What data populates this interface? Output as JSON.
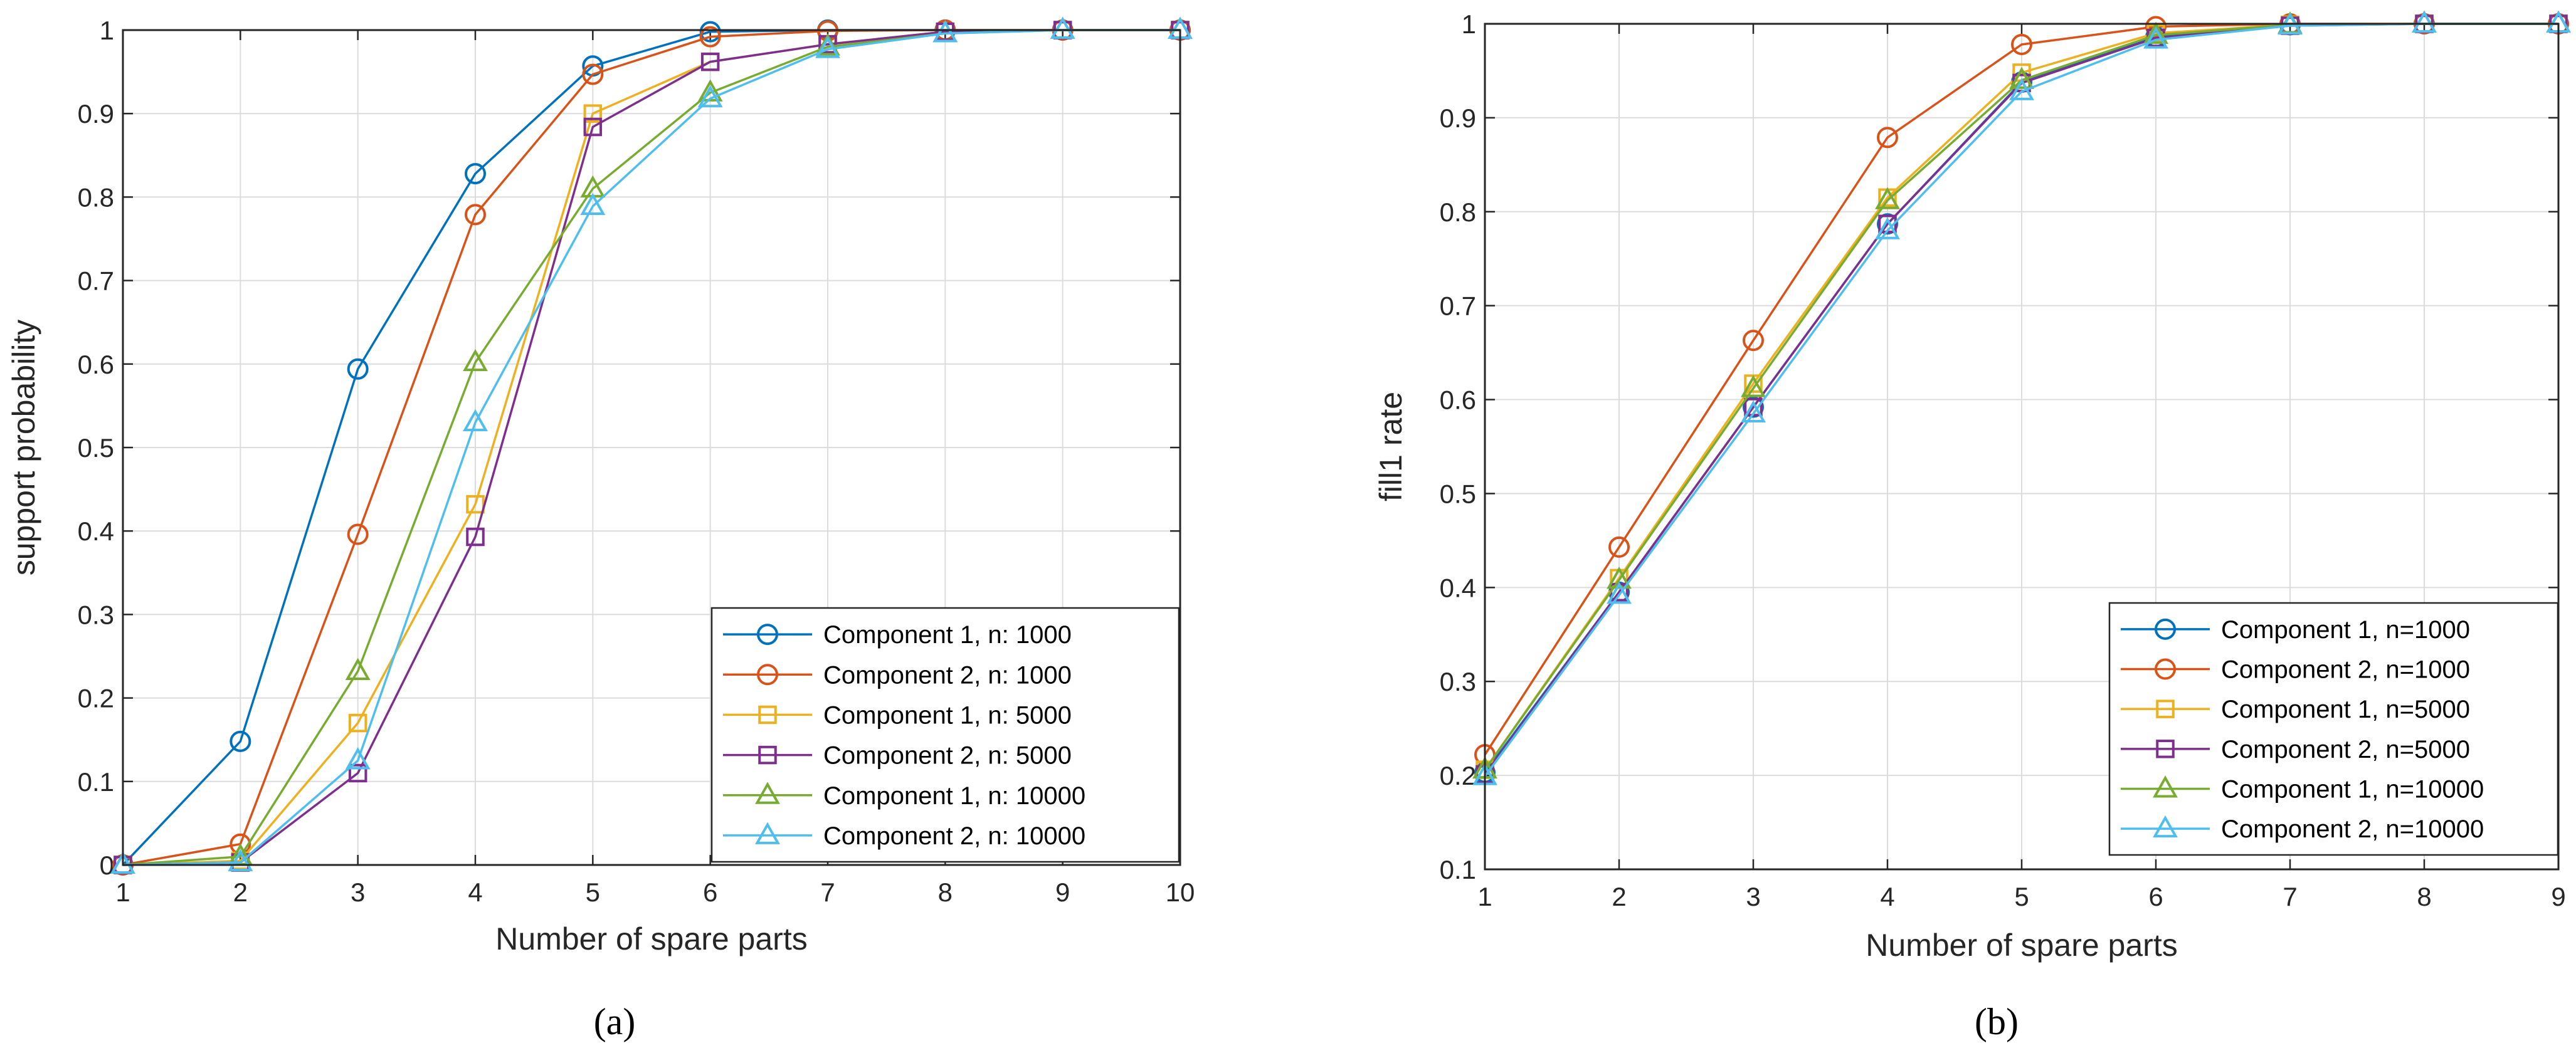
{
  "chart_data": [
    {
      "type": "line",
      "caption": "(a)",
      "xlabel": "Number of spare parts",
      "ylabel": "support probability",
      "xlim": [
        1,
        10
      ],
      "ylim": [
        0,
        1
      ],
      "x": [
        1,
        2,
        3,
        4,
        5,
        6,
        7,
        8,
        9,
        10
      ],
      "xticks": [
        "1",
        "2",
        "3",
        "4",
        "5",
        "6",
        "7",
        "8",
        "9",
        "10"
      ],
      "yticks": [
        "0",
        "0.1",
        "0.2",
        "0.3",
        "0.4",
        "0.5",
        "0.6",
        "0.7",
        "0.8",
        "0.9",
        "1"
      ],
      "grid": true,
      "legend_position": "bottom-right",
      "series": [
        {
          "name": "Component 1, n: 1000",
          "marker": "circle",
          "color": "#0072BD",
          "values": [
            0,
            0.148,
            0.594,
            0.828,
            0.957,
            0.998,
            1.0,
            1.0,
            1.0,
            1.0
          ]
        },
        {
          "name": "Component 2, n: 1000",
          "marker": "circle",
          "color": "#D95319",
          "values": [
            0,
            0.025,
            0.396,
            0.779,
            0.947,
            0.992,
            0.999,
            1.0,
            1.0,
            1.0
          ]
        },
        {
          "name": "Component 1, n: 5000",
          "marker": "square",
          "color": "#EDB120",
          "values": [
            0,
            0.005,
            0.17,
            0.432,
            0.9,
            0.962,
            0.983,
            0.998,
            1.0,
            1.0
          ]
        },
        {
          "name": "Component 2, n: 5000",
          "marker": "square",
          "color": "#7E2F8E",
          "values": [
            0,
            0.003,
            0.11,
            0.393,
            0.884,
            0.962,
            0.983,
            0.998,
            1.0,
            1.0
          ]
        },
        {
          "name": "Component 1, n: 10000",
          "marker": "triangle",
          "color": "#77AC30",
          "values": [
            0,
            0.01,
            0.232,
            0.602,
            0.81,
            0.925,
            0.98,
            0.996,
            1.0,
            1.0
          ]
        },
        {
          "name": "Component 2, n: 10000",
          "marker": "triangle",
          "color": "#4DBEEE",
          "values": [
            0,
            0.003,
            0.125,
            0.53,
            0.789,
            0.918,
            0.977,
            0.996,
            1.0,
            1.0
          ]
        }
      ]
    },
    {
      "type": "line",
      "caption": "(b)",
      "xlabel": "Number of spare parts",
      "ylabel": "fill1 rate",
      "xlim": [
        1,
        9
      ],
      "ylim": [
        0.1,
        1
      ],
      "x": [
        1,
        2,
        3,
        4,
        5,
        6,
        7,
        8,
        9
      ],
      "xticks": [
        "1",
        "2",
        "3",
        "4",
        "5",
        "6",
        "7",
        "8",
        "9"
      ],
      "yticks": [
        "0.1",
        "0.2",
        "0.3",
        "0.4",
        "0.5",
        "0.6",
        "0.7",
        "0.8",
        "0.9",
        "1"
      ],
      "grid": true,
      "legend_position": "bottom-right",
      "series": [
        {
          "name": "Component 1, n=1000",
          "marker": "circle",
          "color": "#0072BD",
          "values": [
            0.203,
            0.395,
            0.592,
            0.787,
            0.938,
            0.986,
            0.999,
            1.0,
            1.0
          ]
        },
        {
          "name": "Component 2, n=1000",
          "marker": "circle",
          "color": "#D95319",
          "values": [
            0.222,
            0.443,
            0.663,
            0.879,
            0.978,
            0.997,
            1.0,
            1.0,
            1.0
          ]
        },
        {
          "name": "Component 1, n=5000",
          "marker": "square",
          "color": "#EDB120",
          "values": [
            0.206,
            0.41,
            0.617,
            0.815,
            0.948,
            0.99,
            0.999,
            1.0,
            1.0
          ]
        },
        {
          "name": "Component 2, n=5000",
          "marker": "square",
          "color": "#7E2F8E",
          "values": [
            0.201,
            0.395,
            0.592,
            0.787,
            0.937,
            0.985,
            0.998,
            1.0,
            1.0
          ]
        },
        {
          "name": "Component 1, n=10000",
          "marker": "triangle",
          "color": "#77AC30",
          "values": [
            0.206,
            0.408,
            0.612,
            0.812,
            0.94,
            0.988,
            0.999,
            1.0,
            1.0
          ]
        },
        {
          "name": "Component 2, n=10000",
          "marker": "triangle",
          "color": "#4DBEEE",
          "values": [
            0.199,
            0.392,
            0.585,
            0.78,
            0.928,
            0.983,
            0.998,
            1.0,
            1.0
          ]
        }
      ]
    }
  ]
}
